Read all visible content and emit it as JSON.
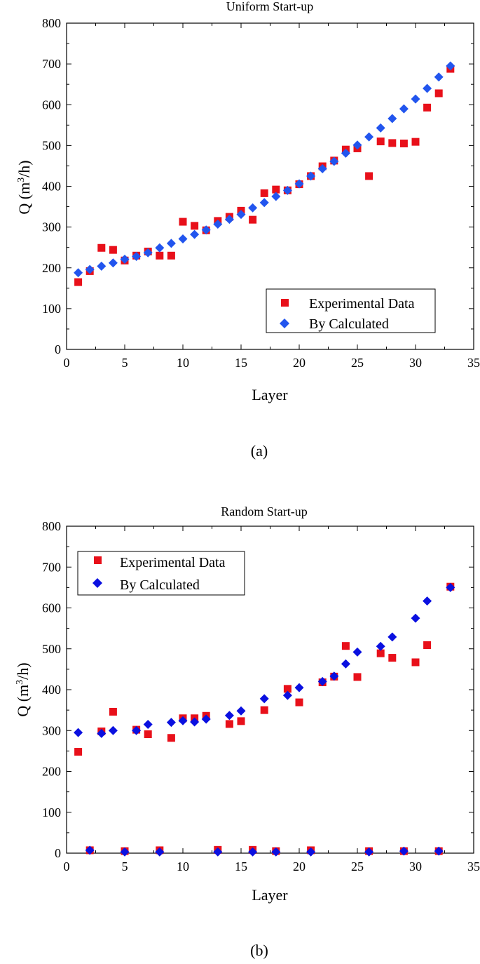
{
  "chart_data": [
    {
      "type": "scatter",
      "title": "Uniform Start-up",
      "xlabel": "Layer",
      "ylabel_main": "Q (m",
      "ylabel_sup": "3",
      "ylabel_tail": "/h)",
      "caption": "(a)",
      "xlim": [
        0,
        35
      ],
      "ylim": [
        0,
        800
      ],
      "xticks": [
        0,
        5,
        10,
        15,
        20,
        25,
        30,
        35
      ],
      "yticks": [
        0,
        100,
        200,
        300,
        400,
        500,
        600,
        700,
        800
      ],
      "legend_position": "bottom-right",
      "series": [
        {
          "name": "Experimental Data",
          "marker": "square",
          "color": "#e8101a",
          "x": [
            1,
            2,
            3,
            4,
            5,
            6,
            7,
            8,
            9,
            10,
            11,
            12,
            13,
            14,
            15,
            16,
            17,
            18,
            19,
            20,
            21,
            22,
            23,
            24,
            25,
            26,
            27,
            28,
            29,
            30,
            31,
            32,
            33
          ],
          "y": [
            165,
            192,
            249,
            244,
            218,
            230,
            240,
            230,
            230,
            313,
            303,
            292,
            315,
            325,
            340,
            318,
            383,
            392,
            390,
            405,
            425,
            449,
            463,
            490,
            493,
            425,
            510,
            506,
            505,
            509,
            593,
            628,
            688
          ]
        },
        {
          "name": "By Calculated",
          "marker": "diamond",
          "color": "#2255ee",
          "x": [
            1,
            2,
            3,
            4,
            5,
            6,
            7,
            8,
            9,
            10,
            11,
            12,
            13,
            14,
            15,
            16,
            17,
            18,
            19,
            20,
            21,
            22,
            23,
            24,
            25,
            26,
            27,
            28,
            29,
            30,
            31,
            32,
            33
          ],
          "y": [
            188,
            196,
            204,
            212,
            221,
            228,
            237,
            249,
            260,
            271,
            282,
            293,
            307,
            319,
            331,
            347,
            360,
            375,
            390,
            406,
            425,
            443,
            461,
            481,
            501,
            521,
            543,
            566,
            590,
            614,
            640,
            668,
            695
          ]
        }
      ]
    },
    {
      "type": "scatter",
      "title": "Random Start-up",
      "xlabel": "Layer",
      "ylabel_main": "Q (m",
      "ylabel_sup": "3",
      "ylabel_tail": "/h)",
      "caption": "(b)",
      "xlim": [
        0,
        35
      ],
      "ylim": [
        0,
        800
      ],
      "xticks": [
        0,
        5,
        10,
        15,
        20,
        25,
        30,
        35
      ],
      "yticks": [
        0,
        100,
        200,
        300,
        400,
        500,
        600,
        700,
        800
      ],
      "legend_position": "top-left",
      "series": [
        {
          "name": "Experimental Data",
          "marker": "square",
          "color": "#e8101a",
          "x": [
            1,
            2,
            3,
            4,
            5,
            6,
            7,
            8,
            9,
            10,
            11,
            12,
            13,
            14,
            15,
            16,
            17,
            18,
            19,
            20,
            21,
            22,
            23,
            24,
            25,
            26,
            27,
            28,
            29,
            30,
            31,
            32,
            33
          ],
          "y": [
            248,
            7,
            298,
            346,
            5,
            302,
            291,
            7,
            282,
            330,
            330,
            336,
            8,
            316,
            323,
            8,
            350,
            5,
            402,
            369,
            7,
            418,
            432,
            507,
            431,
            5,
            489,
            478,
            5,
            467,
            509,
            5,
            652
          ]
        },
        {
          "name": "By Calculated",
          "marker": "diamond",
          "color": "#0a10e0",
          "x": [
            1,
            2,
            3,
            4,
            5,
            6,
            7,
            8,
            9,
            10,
            11,
            12,
            13,
            14,
            15,
            16,
            17,
            18,
            19,
            20,
            21,
            22,
            23,
            24,
            25,
            26,
            27,
            28,
            29,
            30,
            31,
            32,
            33
          ],
          "y": [
            295,
            7,
            293,
            300,
            3,
            300,
            315,
            3,
            320,
            324,
            321,
            328,
            3,
            337,
            348,
            3,
            378,
            3,
            386,
            405,
            3,
            420,
            433,
            463,
            492,
            3,
            506,
            529,
            5,
            575,
            617,
            5,
            650
          ]
        }
      ]
    }
  ]
}
